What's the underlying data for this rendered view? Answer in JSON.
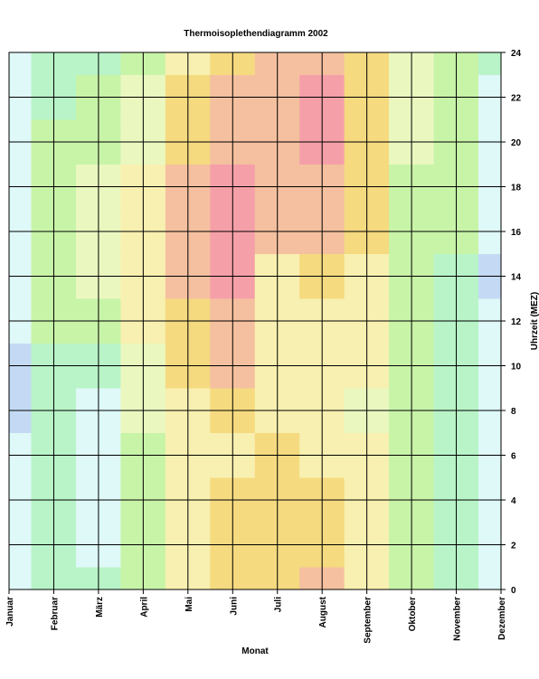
{
  "chart_data": {
    "type": "heatmap",
    "title": "Thermoisoplethendiagramm 2002",
    "x_label": "Monat",
    "y_label": "Uhrzeit (MEZ)",
    "categories": [
      "Januar",
      "Februar",
      "März",
      "April",
      "Mai",
      "Juni",
      "Juli",
      "August",
      "September",
      "Oktober",
      "November",
      "Dezember"
    ],
    "y": [
      0,
      2,
      4,
      6,
      8,
      10,
      12,
      14,
      16,
      18,
      20,
      22,
      24
    ],
    "ylim": [
      0,
      24
    ],
    "yticks": [
      0,
      2,
      4,
      6,
      8,
      10,
      12,
      14,
      16,
      18,
      20,
      22,
      24
    ],
    "grid": true,
    "colors": [
      "#c4daf4",
      "#dff8f8",
      "#b8f4c8",
      "#c8f4a8",
      "#eaf8c0",
      "#f8f0b0",
      "#f5da80",
      "#f5c0a0",
      "#f5a0a8"
    ],
    "z": [
      [
        1,
        1,
        1,
        1,
        0,
        0,
        1,
        1,
        1,
        1,
        1,
        1,
        1
      ],
      [
        2,
        2,
        2,
        2,
        2,
        2,
        3,
        3,
        3,
        3,
        3,
        2,
        2
      ],
      [
        2,
        1,
        1,
        1,
        1,
        2,
        3,
        4,
        4,
        4,
        3,
        3,
        2
      ],
      [
        3,
        3,
        3,
        3,
        4,
        4,
        5,
        5,
        5,
        5,
        4,
        4,
        3
      ],
      [
        5,
        5,
        5,
        5,
        5,
        6,
        6,
        7,
        7,
        7,
        6,
        6,
        5
      ],
      [
        6,
        6,
        6,
        5,
        6,
        7,
        7,
        8,
        8,
        8,
        7,
        7,
        6
      ],
      [
        6,
        6,
        6,
        6,
        5,
        5,
        5,
        5,
        7,
        7,
        7,
        7,
        7
      ],
      [
        7,
        6,
        6,
        5,
        5,
        5,
        5,
        6,
        7,
        7,
        8,
        8,
        7
      ],
      [
        5,
        5,
        5,
        5,
        4,
        5,
        5,
        5,
        6,
        6,
        6,
        6,
        6
      ],
      [
        3,
        3,
        3,
        3,
        3,
        3,
        3,
        3,
        3,
        3,
        4,
        4,
        4
      ],
      [
        2,
        2,
        2,
        2,
        2,
        2,
        2,
        2,
        3,
        3,
        3,
        3,
        3
      ],
      [
        1,
        1,
        1,
        1,
        1,
        1,
        1,
        0,
        1,
        1,
        1,
        1,
        2
      ]
    ]
  }
}
